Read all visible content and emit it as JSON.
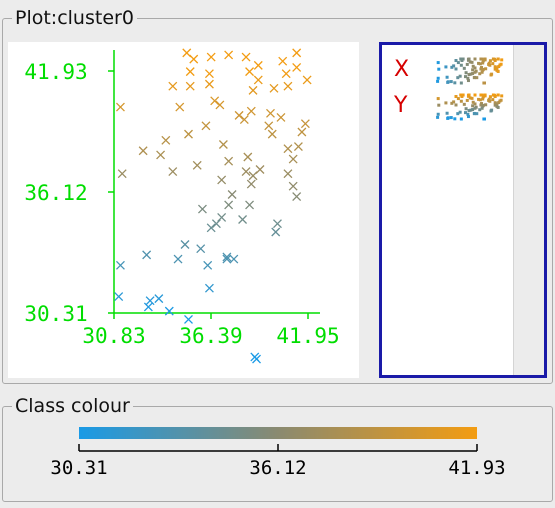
{
  "plot_panel": {
    "title": "Plot:cluster0"
  },
  "class_panel": {
    "title": "Class colour"
  },
  "variables": [
    {
      "label": "X"
    },
    {
      "label": "Y"
    }
  ],
  "colors": {
    "axis": "#00dd00",
    "low": "#1a9ae6",
    "mid": "#8a8a70",
    "high": "#f39c12",
    "var_label": "#d60000",
    "selected_border": "#1a1aa8"
  },
  "chart_data": {
    "type": "scatter",
    "title": "",
    "xlabel": "",
    "ylabel": "",
    "xlim": [
      30.83,
      41.95
    ],
    "ylim": [
      30.31,
      41.93
    ],
    "x_ticks": [
      "30.83",
      "36.39",
      "41.95"
    ],
    "y_ticks": [
      "41.93",
      "36.12",
      "30.31"
    ],
    "marker": "x",
    "color_by": "y",
    "points": [
      [
        35.0,
        42.8
      ],
      [
        35.4,
        42.5
      ],
      [
        36.4,
        42.6
      ],
      [
        37.4,
        42.7
      ],
      [
        38.4,
        42.6
      ],
      [
        41.3,
        42.8
      ],
      [
        39.1,
        42.2
      ],
      [
        40.5,
        42.4
      ],
      [
        41.3,
        42.1
      ],
      [
        35.2,
        41.9
      ],
      [
        36.3,
        41.8
      ],
      [
        38.6,
        41.9
      ],
      [
        39.1,
        41.5
      ],
      [
        40.7,
        41.8
      ],
      [
        41.9,
        41.5
      ],
      [
        34.2,
        41.2
      ],
      [
        35.2,
        41.2
      ],
      [
        36.3,
        41.3
      ],
      [
        38.8,
        41.0
      ],
      [
        40.0,
        41.1
      ],
      [
        40.8,
        41.2
      ],
      [
        34.6,
        40.2
      ],
      [
        36.6,
        40.5
      ],
      [
        36.9,
        40.3
      ],
      [
        38.7,
        40.0
      ],
      [
        31.2,
        40.2
      ],
      [
        38.0,
        39.8
      ],
      [
        39.8,
        39.9
      ],
      [
        40.4,
        39.7
      ],
      [
        41.8,
        39.4
      ],
      [
        36.1,
        39.3
      ],
      [
        38.3,
        39.6
      ],
      [
        39.7,
        39.3
      ],
      [
        33.8,
        38.6
      ],
      [
        35.1,
        38.9
      ],
      [
        39.9,
        38.9
      ],
      [
        37.1,
        38.4
      ],
      [
        40.8,
        38.2
      ],
      [
        41.4,
        38.3
      ],
      [
        41.6,
        39.0
      ],
      [
        32.5,
        38.1
      ],
      [
        33.5,
        37.9
      ],
      [
        35.6,
        37.4
      ],
      [
        37.4,
        37.6
      ],
      [
        38.5,
        37.8
      ],
      [
        41.1,
        37.7
      ],
      [
        31.3,
        37.0
      ],
      [
        34.2,
        37.1
      ],
      [
        38.4,
        37.1
      ],
      [
        38.8,
        36.9
      ],
      [
        39.2,
        37.2
      ],
      [
        40.8,
        37.0
      ],
      [
        37.0,
        36.7
      ],
      [
        38.7,
        36.5
      ],
      [
        41.1,
        36.4
      ],
      [
        37.6,
        36.0
      ],
      [
        41.3,
        35.9
      ],
      [
        35.9,
        35.3
      ],
      [
        37.4,
        35.5
      ],
      [
        38.6,
        35.5
      ],
      [
        37.0,
        34.9
      ],
      [
        36.7,
        34.6
      ],
      [
        36.4,
        34.4
      ],
      [
        38.2,
        34.8
      ],
      [
        40.2,
        34.6
      ],
      [
        40.1,
        34.2
      ],
      [
        34.9,
        33.6
      ],
      [
        35.8,
        33.4
      ],
      [
        37.3,
        33.0
      ],
      [
        32.7,
        33.1
      ],
      [
        34.5,
        32.9
      ],
      [
        37.7,
        32.9
      ],
      [
        37.3,
        32.9
      ],
      [
        31.2,
        32.6
      ],
      [
        36.2,
        32.6
      ],
      [
        36.3,
        31.5
      ],
      [
        31.1,
        31.1
      ],
      [
        32.9,
        30.9
      ],
      [
        33.4,
        31.0
      ],
      [
        32.8,
        30.6
      ],
      [
        34.0,
        30.4
      ],
      [
        35.1,
        30.0
      ],
      [
        38.9,
        28.2
      ],
      [
        39.0,
        28.1
      ]
    ]
  },
  "class_colour": {
    "ticks": [
      "30.31",
      "36.12",
      "41.93"
    ],
    "range": [
      30.31,
      41.93
    ]
  }
}
